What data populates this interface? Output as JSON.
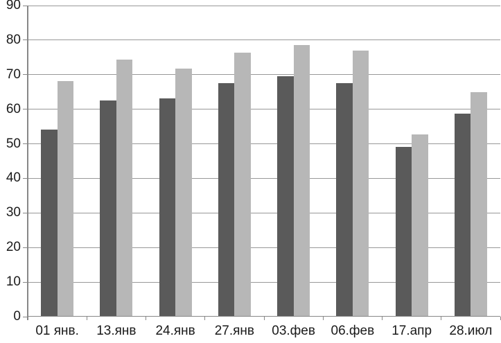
{
  "chart_data": {
    "type": "bar",
    "title": "",
    "xlabel": "",
    "ylabel": "",
    "categories": [
      "01 янв.",
      "13.янв",
      "24.янв",
      "27.янв",
      "03.фев",
      "06.фев",
      "17.апр",
      "28.июл"
    ],
    "series": [
      {
        "name": "series-1-dark-gray",
        "color": "#5a5a5a",
        "values": [
          54.1,
          62.5,
          63.1,
          67.5,
          69.5,
          67.5,
          49.2,
          58.8
        ]
      },
      {
        "name": "series-2-light-gray",
        "color": "#b7b7b7",
        "values": [
          68.2,
          74.3,
          71.8,
          76.4,
          78.6,
          76.9,
          52.8,
          64.9
        ]
      }
    ],
    "ylim": [
      0,
      90
    ],
    "yticks": [
      0,
      10,
      20,
      30,
      40,
      50,
      60,
      70,
      80,
      90
    ],
    "grid": true,
    "legend_position": "none",
    "colors": {
      "gridline": "#989898",
      "axis": "#878787",
      "tick": "#878787",
      "label": "#1a1a1a",
      "background": "#ffffff"
    }
  }
}
